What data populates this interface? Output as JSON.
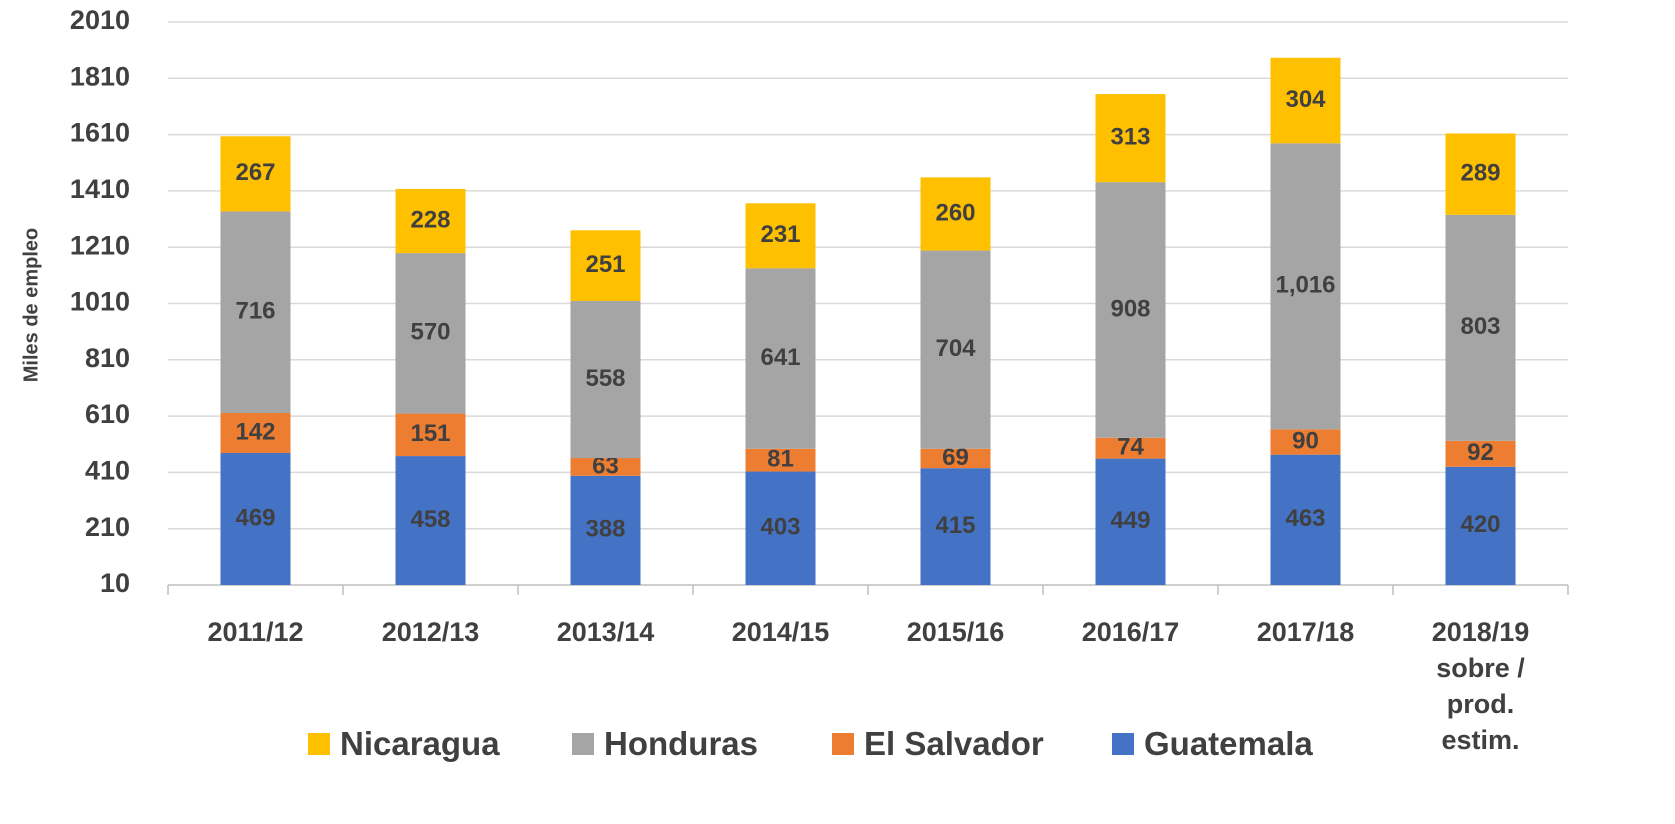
{
  "chart_data": {
    "type": "stacked_bar",
    "y_label": "Miles de empleo",
    "categories": [
      "2011/12",
      "2012/13",
      "2013/14",
      "2014/15",
      "2015/16",
      "2016/17",
      "2017/18",
      "2018/19 sobre / prod. estim."
    ],
    "series": [
      {
        "name": "Guatemala",
        "color": "#4472c4",
        "values": [
          469,
          458,
          388,
          403,
          415,
          449,
          463,
          420
        ]
      },
      {
        "name": "El Salvador",
        "color": "#ed7d31",
        "values": [
          142,
          151,
          63,
          81,
          69,
          74,
          90,
          92
        ]
      },
      {
        "name": "Honduras",
        "color": "#a5a5a5",
        "values": [
          716,
          570,
          558,
          641,
          704,
          908,
          1016,
          803
        ],
        "value_labels": [
          "716",
          "570",
          "558",
          "641",
          "704",
          "908",
          "1,016",
          "803"
        ]
      },
      {
        "name": "Nicaragua",
        "color": "#ffc000",
        "values": [
          267,
          228,
          251,
          231,
          260,
          313,
          304,
          289
        ]
      }
    ],
    "ylim": [
      10,
      2010
    ],
    "yticks": [
      10,
      210,
      410,
      610,
      810,
      1010,
      1210,
      1410,
      1610,
      1810,
      2010
    ],
    "grid": true
  }
}
